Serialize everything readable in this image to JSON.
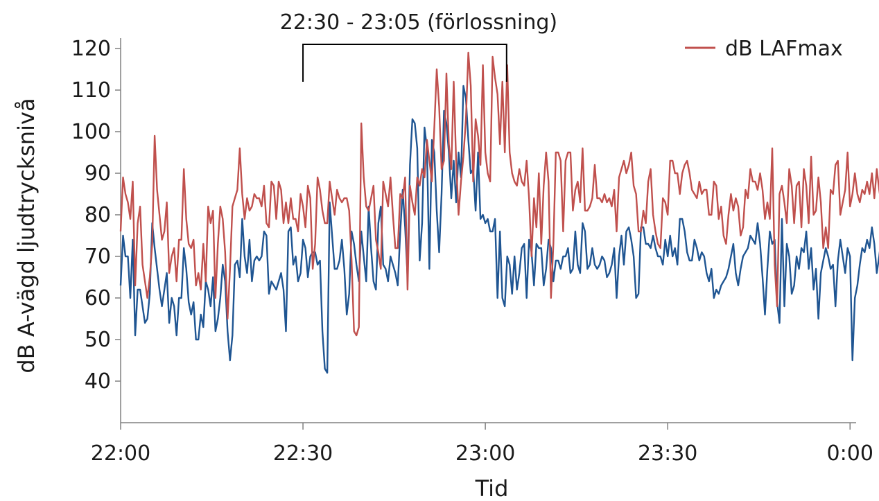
{
  "chart_data": {
    "type": "line",
    "xlabel": "Tid",
    "ylabel": "dB A-vägd ljudtrycksnivå",
    "x_unit": "minutes",
    "xlim": [
      0,
      121
    ],
    "ylim": [
      30,
      125
    ],
    "x_ticks": [
      {
        "value": 0,
        "label": "22:00"
      },
      {
        "value": 30,
        "label": "22:30"
      },
      {
        "value": 60,
        "label": "23:00"
      },
      {
        "value": 90,
        "label": "23:30"
      },
      {
        "value": 120,
        "label": "0:00"
      }
    ],
    "y_ticks": [
      40,
      50,
      60,
      70,
      80,
      90,
      100,
      110,
      120
    ],
    "annotation": {
      "label": "22:30 - 23:05 (förlossning)",
      "x_start": 30,
      "x_end": 63.5
    },
    "legend": {
      "position": "top-right"
    },
    "series": [
      {
        "name": "dB LAFmax",
        "color": "#c0504d",
        "x_step": 0.4,
        "values": [
          76,
          89,
          85,
          83,
          79,
          88,
          63,
          78,
          82,
          68,
          64,
          60,
          65,
          73,
          99,
          86,
          80,
          74,
          76,
          83,
          66,
          70,
          72,
          64,
          74,
          74,
          91,
          79,
          73,
          72,
          74,
          63,
          66,
          62,
          73,
          64,
          82,
          78,
          81,
          60,
          73,
          82,
          79,
          71,
          55,
          67,
          82,
          84,
          86,
          96,
          85,
          79,
          84,
          81,
          82,
          85,
          84,
          84,
          82,
          87,
          78,
          77,
          88,
          87,
          79,
          88,
          86,
          78,
          83,
          78,
          84,
          79,
          79,
          76,
          85,
          82,
          77,
          87,
          84,
          67,
          73,
          89,
          86,
          81,
          78,
          78,
          88,
          84,
          80,
          86,
          84,
          83,
          84,
          84,
          81,
          69,
          52,
          51,
          53,
          102,
          89,
          82,
          81,
          84,
          87,
          74,
          71,
          67,
          88,
          85,
          82,
          89,
          80,
          72,
          72,
          85,
          84,
          89,
          62,
          87,
          83,
          80,
          89,
          87,
          91,
          89,
          98,
          93,
          88,
          101,
          115,
          106,
          91,
          93,
          114,
          97,
          91,
          112,
          93,
          80,
          88,
          94,
          103,
          119,
          111,
          88,
          103,
          99,
          92,
          116,
          95,
          90,
          88,
          118,
          113,
          109,
          97,
          112,
          95,
          116,
          95,
          90,
          88,
          87,
          91,
          88,
          87,
          93,
          84,
          70,
          84,
          77,
          90,
          73,
          87,
          95,
          88,
          60,
          73,
          95,
          95,
          93,
          76,
          93,
          95,
          95,
          81,
          86,
          88,
          83,
          96,
          81,
          81,
          82,
          84,
          92,
          84,
          84,
          83,
          85,
          83,
          84,
          82,
          86,
          76,
          89,
          91,
          93,
          90,
          92,
          95,
          87,
          85,
          76,
          76,
          81,
          78,
          88,
          91,
          80,
          76,
          73,
          72,
          84,
          83,
          80,
          93,
          93,
          90,
          90,
          85,
          90,
          92,
          93,
          90,
          86,
          85,
          84,
          88,
          85,
          86,
          86,
          80,
          80,
          88,
          87,
          79,
          82,
          75,
          73,
          80,
          85,
          81,
          84,
          82,
          75,
          77,
          86,
          84,
          91,
          88,
          88,
          86,
          90,
          86,
          79,
          83,
          79,
          96,
          68,
          58,
          85,
          87,
          83,
          78,
          91,
          87,
          78,
          87,
          88,
          77,
          91,
          87,
          78,
          94,
          80,
          81,
          89,
          83,
          72,
          77,
          72,
          86,
          85,
          92,
          93,
          80,
          83,
          86,
          95,
          82,
          85,
          90,
          85,
          83,
          86,
          85,
          88,
          85,
          90,
          84,
          91,
          86,
          82,
          82,
          80,
          86,
          81,
          80,
          85,
          85,
          86,
          86,
          93,
          89,
          87,
          85,
          82,
          79,
          90,
          83,
          79,
          85,
          87,
          89,
          84,
          72,
          80,
          83,
          84,
          92,
          87,
          85,
          89
        ],
        "label_visible": true
      },
      {
        "name": "",
        "color": "#1f5592",
        "x_step": 0.4,
        "values": [
          63,
          75,
          70,
          70,
          60,
          74,
          51,
          62,
          62,
          58,
          54,
          55,
          61,
          78,
          72,
          67,
          62,
          58,
          62,
          66,
          54,
          60,
          58,
          51,
          60,
          60,
          72,
          67,
          59,
          56,
          59,
          50,
          50,
          56,
          53,
          64,
          62,
          58,
          65,
          52,
          55,
          60,
          68,
          64,
          52,
          45,
          51,
          68,
          69,
          65,
          79,
          70,
          66,
          74,
          64,
          69,
          70,
          69,
          70,
          76,
          75,
          61,
          64,
          63,
          62,
          64,
          66,
          62,
          52,
          76,
          77,
          68,
          70,
          64,
          66,
          74,
          72,
          65,
          70,
          71,
          71,
          68,
          69,
          52,
          43,
          42,
          83,
          75,
          67,
          67,
          69,
          74,
          67,
          56,
          61,
          76,
          73,
          68,
          64,
          76,
          70,
          64,
          82,
          72,
          64,
          62,
          78,
          82,
          68,
          67,
          64,
          70,
          68,
          66,
          63,
          76,
          86,
          77,
          65,
          92,
          103,
          102,
          96,
          69,
          78,
          101,
          96,
          67,
          98,
          95,
          81,
          71,
          85,
          105,
          102,
          95,
          84,
          93,
          83,
          95,
          89,
          111,
          108,
          98,
          90,
          91,
          81,
          95,
          79,
          80,
          78,
          79,
          76,
          76,
          79,
          60,
          76,
          60,
          58,
          70,
          68,
          61,
          70,
          62,
          66,
          72,
          73,
          60,
          74,
          71,
          63,
          73,
          72,
          72,
          63,
          67,
          74,
          72,
          64,
          69,
          69,
          67,
          70,
          70,
          72,
          66,
          67,
          76,
          68,
          66,
          78,
          76,
          67,
          68,
          72,
          68,
          67,
          68,
          70,
          69,
          65,
          66,
          68,
          72,
          60,
          70,
          75,
          68,
          76,
          77,
          74,
          70,
          60,
          61,
          77,
          77,
          73,
          73,
          72,
          75,
          72,
          70,
          70,
          68,
          74,
          70,
          75,
          70,
          72,
          68,
          79,
          79,
          76,
          71,
          69,
          69,
          74,
          72,
          69,
          71,
          70,
          66,
          64,
          67,
          60,
          62,
          61,
          63,
          64,
          65,
          67,
          70,
          73,
          66,
          63,
          67,
          70,
          71,
          72,
          75,
          74,
          73,
          78,
          73,
          65,
          56,
          67,
          76,
          73,
          74,
          59,
          54,
          79,
          58,
          73,
          70,
          61,
          63,
          70,
          67,
          72,
          71,
          76,
          67,
          72,
          62,
          67,
          55,
          66,
          69,
          72,
          70,
          67,
          68,
          58,
          69,
          74,
          70,
          66,
          72,
          70,
          45,
          60,
          63,
          68,
          72,
          71,
          74,
          72,
          77,
          73,
          66,
          70,
          75,
          71,
          72,
          68,
          64,
          75,
          69,
          70,
          66,
          66,
          65,
          74,
          72,
          70,
          72,
          73,
          68,
          74,
          69,
          70,
          63,
          77,
          73,
          75,
          65,
          76,
          77,
          78,
          74,
          75,
          65,
          73,
          72,
          75,
          74,
          69,
          72,
          70,
          66,
          72,
          67,
          65,
          67,
          73,
          73,
          68,
          74,
          76,
          75,
          71,
          73,
          73,
          73,
          70,
          69,
          67,
          74,
          62,
          63,
          73,
          71,
          69,
          70,
          68,
          72,
          71,
          75,
          74,
          70,
          70,
          75
        ]
      }
    ]
  }
}
